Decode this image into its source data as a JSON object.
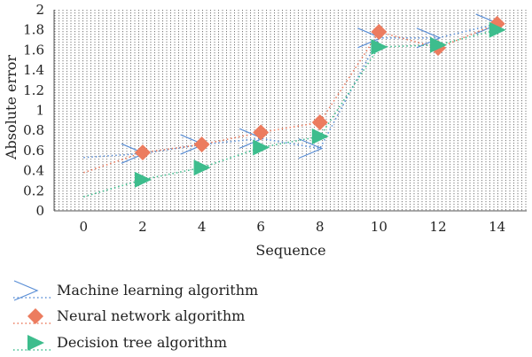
{
  "chart_data": {
    "type": "line",
    "xlabel": "Sequence",
    "ylabel": "Absolute error",
    "xlim": [
      -1,
      15
    ],
    "ylim": [
      0,
      2
    ],
    "x_ticks": [
      "0",
      "2",
      "4",
      "6",
      "8",
      "10",
      "12",
      "14"
    ],
    "y_ticks": [
      "0",
      "0.2",
      "0.4",
      "0.6",
      "0.8",
      "1",
      "1.2",
      "1.4",
      "1.6",
      "1.8",
      "2"
    ],
    "grid": "vertical dotted lines",
    "legend_position": "bottom-left",
    "series": [
      {
        "name": "Machine learning algorithm",
        "marker": "chevron",
        "color": "#5b8fd6",
        "line_style": "dotted",
        "x": [
          0,
          2,
          4,
          6,
          8,
          10,
          12,
          14
        ],
        "y": [
          0.53,
          0.57,
          0.66,
          0.72,
          0.62,
          1.72,
          1.72,
          1.86
        ]
      },
      {
        "name": "Neural network algorithm",
        "marker": "diamond",
        "color": "#ec7c5f",
        "line_style": "dotted",
        "x": [
          0,
          2,
          4,
          6,
          8,
          10,
          12,
          14
        ],
        "y": [
          0.38,
          0.58,
          0.66,
          0.78,
          0.88,
          1.78,
          1.62,
          1.86
        ]
      },
      {
        "name": "Decision tree algorithm",
        "marker": "triangle",
        "color": "#3dbd8d",
        "line_style": "dotted",
        "x": [
          0,
          2,
          4,
          6,
          8,
          10,
          12,
          14
        ],
        "y": [
          0.14,
          0.31,
          0.43,
          0.63,
          0.74,
          1.63,
          1.65,
          1.8
        ]
      }
    ]
  }
}
